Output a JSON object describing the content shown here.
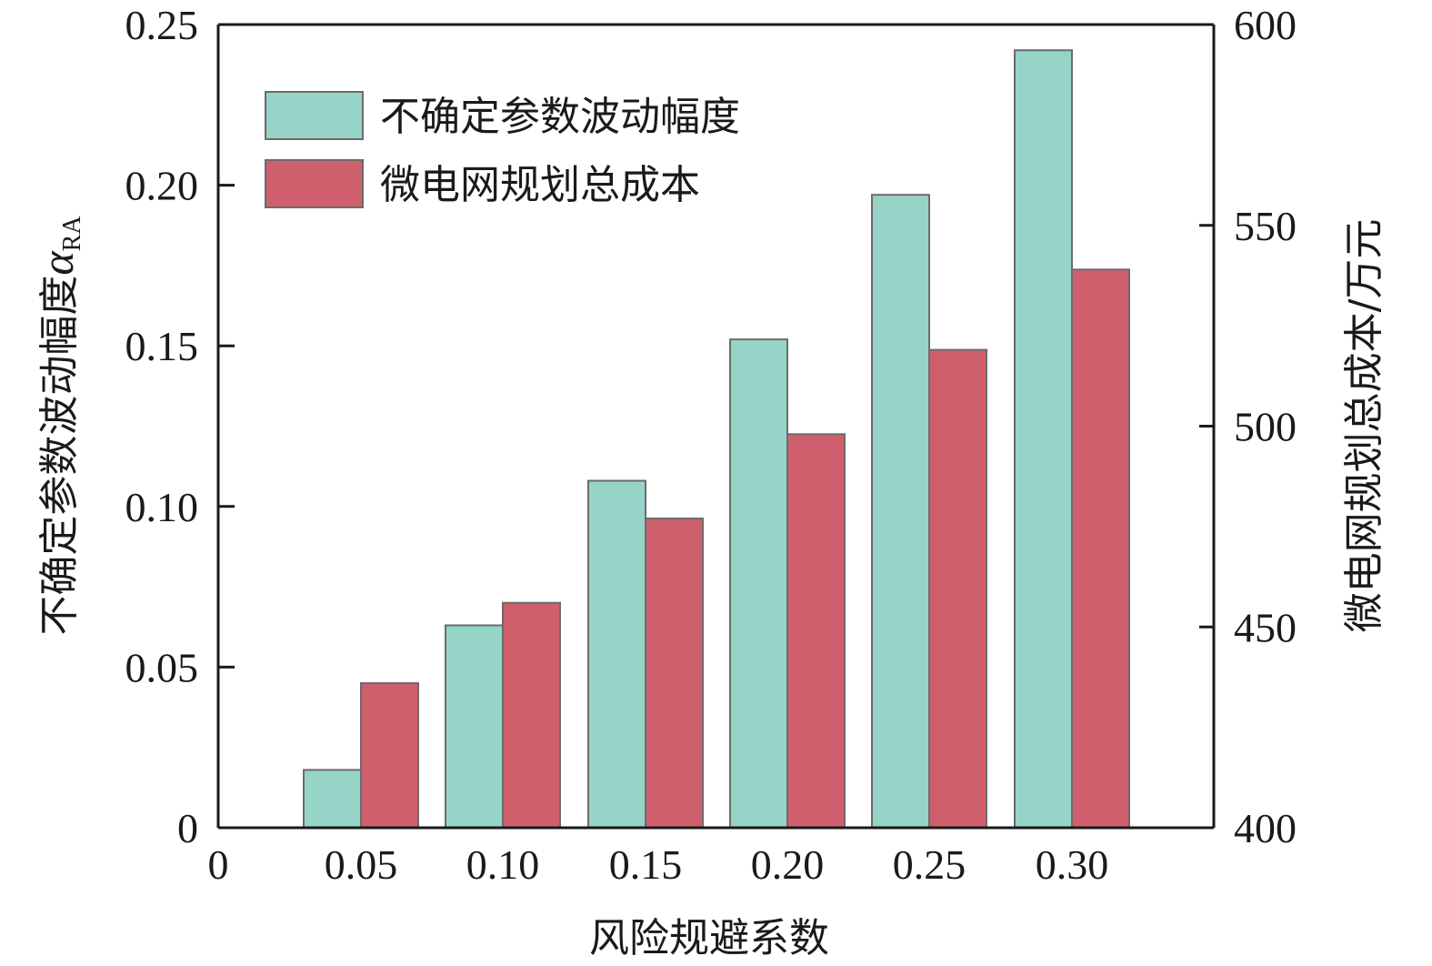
{
  "chart_data": {
    "type": "bar",
    "title": "",
    "xlabel": "风险规避系数",
    "ylabel_left": "不确定参数波动幅度α_RA",
    "ylabel_left_main": "不确定参数波动幅度",
    "ylabel_left_symbol": "α",
    "ylabel_left_subscript": "RA",
    "ylabel_right": "微电网规划总成本/万元",
    "categories": [
      "0.05",
      "0.10",
      "0.15",
      "0.20",
      "0.25",
      "0.30"
    ],
    "x_origin_label": "0",
    "series": [
      {
        "name": "不确定参数波动幅度",
        "axis": "left",
        "color": "#96d4c8",
        "values": [
          0.018,
          0.063,
          0.108,
          0.152,
          0.197,
          0.242
        ]
      },
      {
        "name": "微电网规划总成本",
        "axis": "right",
        "color": "#d05f6e",
        "values": [
          436,
          456,
          477,
          498,
          519,
          539
        ]
      }
    ],
    "ylim_left": [
      0,
      0.25
    ],
    "yticks_left": [
      "0",
      "0.05",
      "0.10",
      "0.15",
      "0.20",
      "0.25"
    ],
    "ylim_right": [
      400,
      600
    ],
    "yticks_right": [
      "400",
      "450",
      "500",
      "550",
      "600"
    ],
    "legend_position": "upper left",
    "grid": false
  }
}
